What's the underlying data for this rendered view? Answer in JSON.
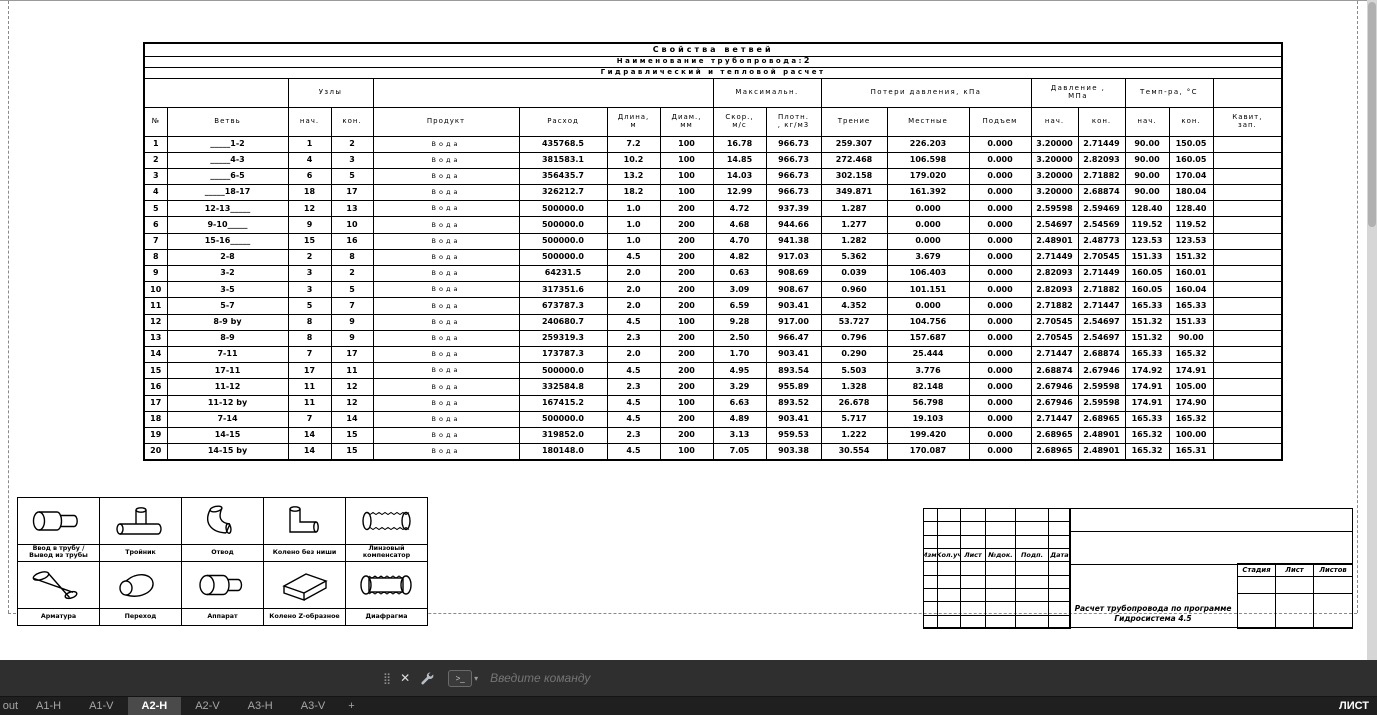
{
  "table": {
    "title": "Свойства ветвей",
    "subtitle_label": "Наименование трубопровода:",
    "subtitle_value": "2",
    "subtitle2": "Гидравлический и тепловой расчет",
    "group_labels": {
      "uzly": "Узлы",
      "max": "Максимальн.",
      "losses": "Потери давления, кПа",
      "pressure": "Давление ,\nМПа",
      "temp": "Темп-ра, °C"
    },
    "col_labels": [
      "№",
      "Ветвь",
      "нач.",
      "кон.",
      "Продукт",
      "Расход",
      "Длина,\nм",
      "Диам.,\nмм",
      "Скор.,\nм/с",
      "Плотн.\n, кг/м3",
      "Трение",
      "Местные",
      "Подъем",
      "нач.",
      "кон.",
      "нач.",
      "кон.",
      "Кавит,\nзап."
    ],
    "col_keys": [
      "num",
      "branch",
      "node-start",
      "node-end",
      "product",
      "flow",
      "length",
      "diam",
      "speed",
      "density",
      "friction",
      "local",
      "lift",
      "p-start",
      "p-end",
      "t-start",
      "t-end",
      "cavit"
    ],
    "rows": [
      [
        "1",
        "_____1-2",
        "1",
        "2",
        "Вода",
        "435768.5",
        "7.2",
        "100",
        "16.78",
        "966.73",
        "259.307",
        "226.203",
        "0.000",
        "3.20000",
        "2.71449",
        "90.00",
        "150.05",
        ""
      ],
      [
        "2",
        "_____4-3",
        "4",
        "3",
        "Вода",
        "381583.1",
        "10.2",
        "100",
        "14.85",
        "966.73",
        "272.468",
        "106.598",
        "0.000",
        "3.20000",
        "2.82093",
        "90.00",
        "160.05",
        ""
      ],
      [
        "3",
        "_____6-5",
        "6",
        "5",
        "Вода",
        "356435.7",
        "13.2",
        "100",
        "14.03",
        "966.73",
        "302.158",
        "179.020",
        "0.000",
        "3.20000",
        "2.71882",
        "90.00",
        "170.04",
        ""
      ],
      [
        "4",
        "_____18-17",
        "18",
        "17",
        "Вода",
        "326212.7",
        "18.2",
        "100",
        "12.99",
        "966.73",
        "349.871",
        "161.392",
        "0.000",
        "3.20000",
        "2.68874",
        "90.00",
        "180.04",
        ""
      ],
      [
        "5",
        "12-13_____",
        "12",
        "13",
        "Вода",
        "500000.0",
        "1.0",
        "200",
        "4.72",
        "937.39",
        "1.287",
        "0.000",
        "0.000",
        "2.59598",
        "2.59469",
        "128.40",
        "128.40",
        ""
      ],
      [
        "6",
        "9-10_____",
        "9",
        "10",
        "Вода",
        "500000.0",
        "1.0",
        "200",
        "4.68",
        "944.66",
        "1.277",
        "0.000",
        "0.000",
        "2.54697",
        "2.54569",
        "119.52",
        "119.52",
        ""
      ],
      [
        "7",
        "15-16_____",
        "15",
        "16",
        "Вода",
        "500000.0",
        "1.0",
        "200",
        "4.70",
        "941.38",
        "1.282",
        "0.000",
        "0.000",
        "2.48901",
        "2.48773",
        "123.53",
        "123.53",
        ""
      ],
      [
        "8",
        "2-8",
        "2",
        "8",
        "Вода",
        "500000.0",
        "4.5",
        "200",
        "4.82",
        "917.03",
        "5.362",
        "3.679",
        "0.000",
        "2.71449",
        "2.70545",
        "151.33",
        "151.32",
        ""
      ],
      [
        "9",
        "3-2",
        "3",
        "2",
        "Вода",
        "64231.5",
        "2.0",
        "200",
        "0.63",
        "908.69",
        "0.039",
        "106.403",
        "0.000",
        "2.82093",
        "2.71449",
        "160.05",
        "160.01",
        ""
      ],
      [
        "10",
        "3-5",
        "3",
        "5",
        "Вода",
        "317351.6",
        "2.0",
        "200",
        "3.09",
        "908.67",
        "0.960",
        "101.151",
        "0.000",
        "2.82093",
        "2.71882",
        "160.05",
        "160.04",
        ""
      ],
      [
        "11",
        "5-7",
        "5",
        "7",
        "Вода",
        "673787.3",
        "2.0",
        "200",
        "6.59",
        "903.41",
        "4.352",
        "0.000",
        "0.000",
        "2.71882",
        "2.71447",
        "165.33",
        "165.33",
        ""
      ],
      [
        "12",
        "8-9 by",
        "8",
        "9",
        "Вода",
        "240680.7",
        "4.5",
        "100",
        "9.28",
        "917.00",
        "53.727",
        "104.756",
        "0.000",
        "2.70545",
        "2.54697",
        "151.32",
        "151.33",
        ""
      ],
      [
        "13",
        "8-9",
        "8",
        "9",
        "Вода",
        "259319.3",
        "2.3",
        "200",
        "2.50",
        "966.47",
        "0.796",
        "157.687",
        "0.000",
        "2.70545",
        "2.54697",
        "151.32",
        "90.00",
        ""
      ],
      [
        "14",
        "7-11",
        "7",
        "17",
        "Вода",
        "173787.3",
        "2.0",
        "200",
        "1.70",
        "903.41",
        "0.290",
        "25.444",
        "0.000",
        "2.71447",
        "2.68874",
        "165.33",
        "165.32",
        ""
      ],
      [
        "15",
        "17-11",
        "17",
        "11",
        "Вода",
        "500000.0",
        "4.5",
        "200",
        "4.95",
        "893.54",
        "5.503",
        "3.776",
        "0.000",
        "2.68874",
        "2.67946",
        "174.92",
        "174.91",
        ""
      ],
      [
        "16",
        "11-12",
        "11",
        "12",
        "Вода",
        "332584.8",
        "2.3",
        "200",
        "3.29",
        "955.89",
        "1.328",
        "82.148",
        "0.000",
        "2.67946",
        "2.59598",
        "174.91",
        "105.00",
        ""
      ],
      [
        "17",
        "11-12 by",
        "11",
        "12",
        "Вода",
        "167415.2",
        "4.5",
        "100",
        "6.63",
        "893.52",
        "26.678",
        "56.798",
        "0.000",
        "2.67946",
        "2.59598",
        "174.91",
        "174.90",
        ""
      ],
      [
        "18",
        "7-14",
        "7",
        "14",
        "Вода",
        "500000.0",
        "4.5",
        "200",
        "4.89",
        "903.41",
        "5.717",
        "19.103",
        "0.000",
        "2.71447",
        "2.68965",
        "165.33",
        "165.32",
        ""
      ],
      [
        "19",
        "14-15",
        "14",
        "15",
        "Вода",
        "319852.0",
        "2.3",
        "200",
        "3.13",
        "959.53",
        "1.222",
        "199.420",
        "0.000",
        "2.68965",
        "2.48901",
        "165.32",
        "100.00",
        ""
      ],
      [
        "20",
        "14-15 by",
        "14",
        "15",
        "Вода",
        "180148.0",
        "4.5",
        "100",
        "7.05",
        "903.38",
        "30.554",
        "170.087",
        "0.000",
        "2.68965",
        "2.48901",
        "165.32",
        "165.31",
        ""
      ]
    ]
  },
  "legend": {
    "items": [
      {
        "icon": "pipe-inlet-icon",
        "label": "Ввод в трубу /\nВывод из трубы"
      },
      {
        "icon": "tee-icon",
        "label": "Тройник"
      },
      {
        "icon": "bend-icon",
        "label": "Отвод"
      },
      {
        "icon": "elbow-icon",
        "label": "Колено без ниши"
      },
      {
        "icon": "lens-compensator-icon",
        "label": "Линзовый компенсатор"
      },
      {
        "icon": "valve-icon",
        "label": "Арматура"
      },
      {
        "icon": "reducer-icon",
        "label": "Переход"
      },
      {
        "icon": "apparatus-icon",
        "label": "Аппарат"
      },
      {
        "icon": "z-elbow-icon",
        "label": "Колено Z-образное"
      },
      {
        "icon": "diaphragm-icon",
        "label": "Диафрагма"
      }
    ]
  },
  "titleblock": {
    "rev_headers": [
      "Изм.",
      "Кол.уч",
      "Лист",
      "№док.",
      "Подп.",
      "Дата"
    ],
    "stage_headers": [
      "Стадия",
      "Лист",
      "Листов"
    ],
    "doc_title": "Расчет трубопровода по программе\nГидросистема 4.5"
  },
  "commandbar": {
    "placeholder": "Введите команду",
    "close_glyph": "✕",
    "grip_glyph": "⣿",
    "caret_glyph": "▾",
    "prompt_glyph": ">_"
  },
  "tabs": {
    "items": [
      {
        "label": "out",
        "active": false
      },
      {
        "label": "A1-H",
        "active": false
      },
      {
        "label": "A1-V",
        "active": false
      },
      {
        "label": "A2-H",
        "active": true
      },
      {
        "label": "A2-V",
        "active": false
      },
      {
        "label": "A3-H",
        "active": false
      },
      {
        "label": "A3-V",
        "active": false
      },
      {
        "label": "+",
        "active": false
      }
    ],
    "right_label": "ЛИСТ"
  },
  "colors": {
    "ui_dark": "#2f2f2f",
    "tabbar": "#1f1f1f",
    "active_tab": "#4a4a4a",
    "paper": "#ffffff",
    "line": "#000000"
  }
}
